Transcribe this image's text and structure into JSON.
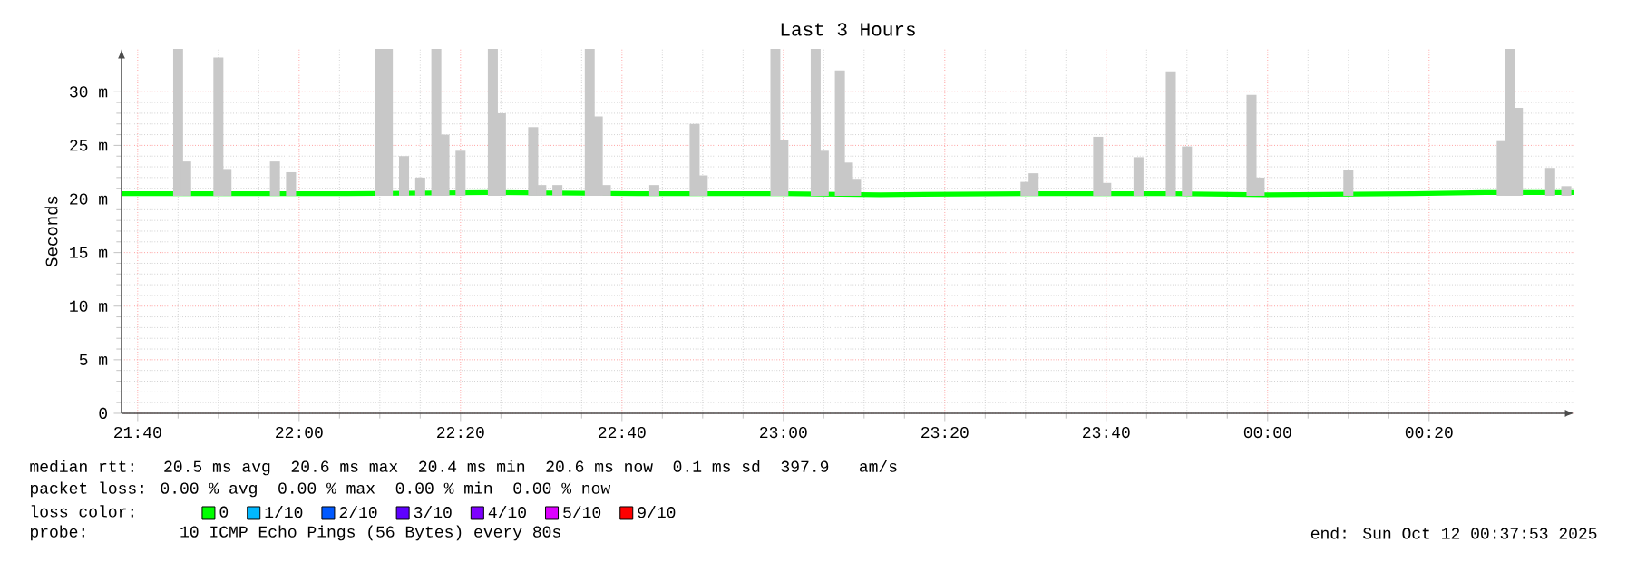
{
  "chart_data": {
    "type": "bar",
    "title": "Last 3 Hours",
    "ylabel": "Seconds",
    "xlim": [
      "2025-10-11T21:38",
      "2025-10-12T00:38"
    ],
    "ylim": [
      0,
      34
    ],
    "xticks": [
      {
        "value": "2025-10-11T21:40",
        "label": "21:40"
      },
      {
        "value": "2025-10-11T22:00",
        "label": "22:00"
      },
      {
        "value": "2025-10-11T22:20",
        "label": "22:20"
      },
      {
        "value": "2025-10-11T22:40",
        "label": "22:40"
      },
      {
        "value": "2025-10-11T23:00",
        "label": "23:00"
      },
      {
        "value": "2025-10-11T23:20",
        "label": "23:20"
      },
      {
        "value": "2025-10-11T23:40",
        "label": "23:40"
      },
      {
        "value": "2025-10-12T00:00",
        "label": "00:00"
      },
      {
        "value": "2025-10-12T00:20",
        "label": "00:20"
      }
    ],
    "yticks": [
      0,
      {
        "value": 5,
        "label": "5 m"
      },
      {
        "value": 10,
        "label": "10 m"
      },
      {
        "value": 15,
        "label": "15 m"
      },
      {
        "value": 20,
        "label": "20 m"
      },
      {
        "value": 25,
        "label": "25 m"
      },
      {
        "value": 30,
        "label": "30 m"
      }
    ],
    "grid": true,
    "legend": "bottom",
    "legend_title": "loss color:",
    "series": [
      {
        "color": "#c8c8c8",
        "x": [
          "2025-10-11T21:45",
          "2025-10-11T21:46",
          "2025-10-11T21:50",
          "2025-10-11T21:51",
          "2025-10-11T21:57",
          "2025-10-11T21:59",
          "2025-10-11T22:10",
          "2025-10-11T22:11",
          "2025-10-11T22:13",
          "2025-10-11T22:15",
          "2025-10-11T22:17",
          "2025-10-11T22:18",
          "2025-10-11T22:20",
          "2025-10-11T22:24",
          "2025-10-11T22:25",
          "2025-10-11T22:29",
          "2025-10-11T22:30",
          "2025-10-11T22:32",
          "2025-10-11T22:36",
          "2025-10-11T22:37",
          "2025-10-11T22:38",
          "2025-10-11T22:44",
          "2025-10-11T22:49",
          "2025-10-11T22:50",
          "2025-10-11T22:59",
          "2025-10-11T23:00",
          "2025-10-11T23:04",
          "2025-10-11T23:05",
          "2025-10-11T23:07",
          "2025-10-11T23:08",
          "2025-10-11T23:09",
          "2025-10-11T23:30",
          "2025-10-11T23:31",
          "2025-10-11T23:39",
          "2025-10-11T23:40",
          "2025-10-11T23:44",
          "2025-10-11T23:48",
          "2025-10-11T23:50",
          "2025-10-11T23:58",
          "2025-10-11T23:59",
          "2025-10-12T00:10",
          "2025-10-12T00:29",
          "2025-10-12T00:30",
          "2025-10-12T00:31",
          "2025-10-12T00:35",
          "2025-10-12T00:37"
        ],
        "base": [
          20.3,
          20.3,
          20.3,
          20.3,
          20.3,
          20.3,
          20.3,
          20.3,
          20.3,
          20.3,
          20.3,
          20.3,
          20.3,
          20.3,
          20.3,
          20.3,
          20.3,
          20.3,
          20.3,
          20.3,
          20.3,
          20.3,
          20.3,
          20.3,
          20.3,
          20.3,
          20.3,
          20.3,
          20.3,
          20.3,
          20.3,
          20.3,
          20.3,
          20.3,
          20.3,
          20.3,
          20.3,
          20.3,
          20.3,
          20.3,
          20.3,
          20.3,
          20.3,
          20.3,
          20.3,
          20.3
        ],
        "values": [
          13.7,
          3.2,
          12.9,
          2.5,
          3.2,
          2.2,
          13.7,
          13.7,
          3.7,
          1.7,
          13.7,
          5.7,
          4.2,
          13.7,
          7.7,
          6.4,
          1.0,
          1.0,
          13.7,
          7.4,
          1.0,
          1.0,
          6.7,
          1.9,
          13.7,
          5.2,
          13.7,
          4.2,
          11.7,
          3.1,
          1.5,
          1.3,
          2.1,
          5.5,
          1.2,
          3.6,
          11.6,
          4.6,
          9.4,
          1.7,
          2.4,
          5.1,
          13.7,
          8.2,
          2.6,
          0.9
        ]
      },
      {
        "type": "line",
        "name": "0",
        "color": "#00ff00",
        "x": [
          "2025-10-11T21:38",
          "2025-10-11T21:54",
          "2025-10-11T22:06",
          "2025-10-11T22:24",
          "2025-10-11T22:42",
          "2025-10-11T23:00",
          "2025-10-11T23:12",
          "2025-10-11T23:30",
          "2025-10-11T23:48",
          "2025-10-12T00:00",
          "2025-10-12T00:18",
          "2025-10-12T00:27",
          "2025-10-12T00:38"
        ],
        "values": [
          20.5,
          20.5,
          20.5,
          20.6,
          20.5,
          20.5,
          20.4,
          20.5,
          20.5,
          20.4,
          20.5,
          20.6,
          20.6
        ]
      },
      {
        "type": "line",
        "name": "1/10",
        "color": "#00b8ff"
      },
      {
        "type": "line",
        "name": "2/10",
        "color": "#0059ff"
      },
      {
        "type": "line",
        "name": "3/10",
        "color": "#5e00ff"
      },
      {
        "type": "line",
        "name": "4/10",
        "color": "#7e00ff"
      },
      {
        "type": "line",
        "name": "5/10",
        "color": "#dd00ff"
      },
      {
        "type": "line",
        "name": "9/10",
        "color": "#ff0000"
      }
    ],
    "annotations": [
      "median rtt:  20.5 ms avg  20.6 ms max  20.4 ms min  20.6 ms now  0.1 ms sd  397.9   am/s",
      "packet loss: 0.00 % avg  0.00 % max  0.00 % min  0.00 % now",
      "probe:       10 ICMP Echo Pings (56 Bytes) every 80s",
      "end: Sun Oct 12 00:37:53 2025"
    ]
  }
}
